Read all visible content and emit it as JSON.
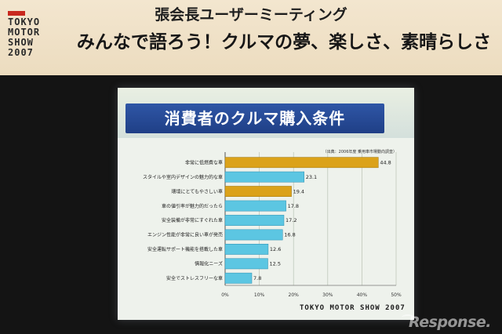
{
  "banner": {
    "logo_lines": [
      "TOKYO",
      "MOTOR",
      "SHOW",
      "2007"
    ],
    "title": "張会長ユーザーミーティング",
    "subtitle": "みんなで語ろう！クルマの夢、楽しさ、素晴らしさ"
  },
  "slide": {
    "source_note": "（出典：2006年度 乗用車市場動向調査）",
    "footer_logo": "TOKYO MOTOR SHOW 2007"
  },
  "watermark": "Response.",
  "colors": {
    "highlight_bar": "#dba21a",
    "normal_bar": "#5cc6e2",
    "title_box": "#2a4f9e"
  },
  "chart_data": {
    "type": "bar",
    "orientation": "horizontal",
    "title": "消費者のクルマ購入条件",
    "categories": [
      "非常に低燃費な車",
      "スタイルや室内デザインの魅力的な車",
      "環境にとてもやさしい車",
      "車の値引率が魅力的だったら",
      "安全装備が非常にすぐれた車",
      "エンジン性能が非常に良い車が発売",
      "安全運転サポート機能を搭載した車",
      "情報化ニーズ",
      "安全でストレスフリーな車"
    ],
    "values": [
      44.8,
      23.1,
      19.4,
      17.8,
      17.2,
      16.8,
      12.6,
      12.5,
      7.8
    ],
    "highlighted": [
      true,
      false,
      true,
      false,
      false,
      false,
      false,
      false,
      false
    ],
    "value_labels": [
      "44.8",
      "23.1",
      "19.4",
      "17.8",
      "17.2",
      "16.8",
      "12.6",
      "12.5",
      "7.8"
    ],
    "xlim": [
      0,
      50
    ],
    "xticks": [
      "0%",
      "10%",
      "20%",
      "30%",
      "40%",
      "50%"
    ],
    "grid": true,
    "xlabel": "",
    "ylabel": ""
  }
}
